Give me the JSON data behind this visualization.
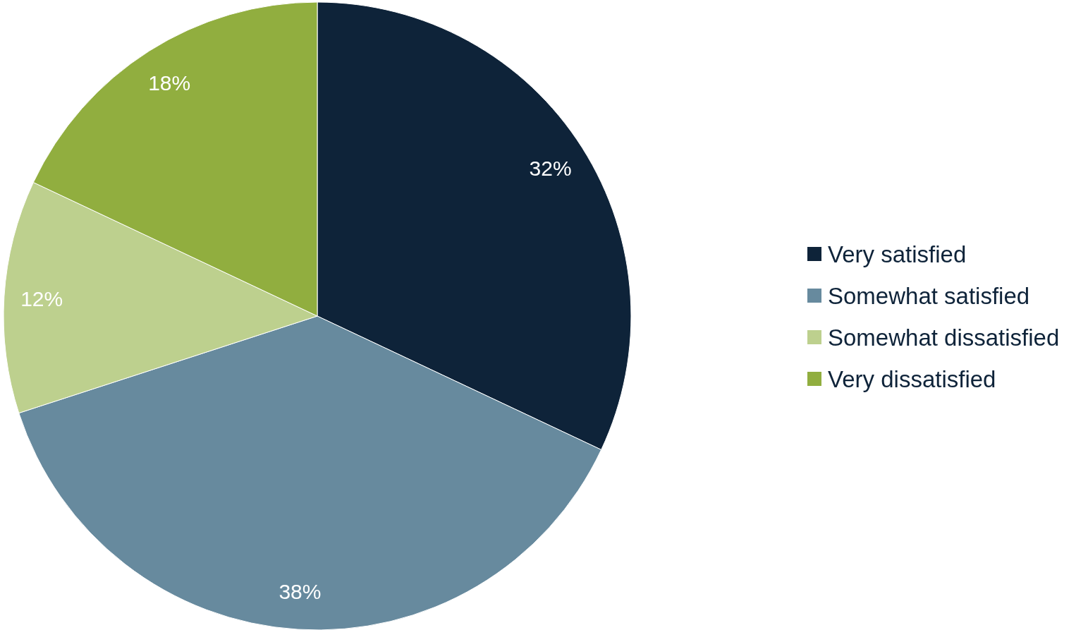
{
  "chart_data": {
    "type": "pie",
    "categories": [
      "Very satisfied",
      "Somewhat satisfied",
      "Somewhat dissatisfied",
      "Very dissatisfied"
    ],
    "values": [
      32,
      38,
      12,
      18
    ],
    "colors": [
      "#0e2339",
      "#678a9e",
      "#bdd08e",
      "#91ae3f"
    ],
    "value_labels": [
      "32%",
      "38%",
      "12%",
      "18%"
    ],
    "legend": "right"
  }
}
